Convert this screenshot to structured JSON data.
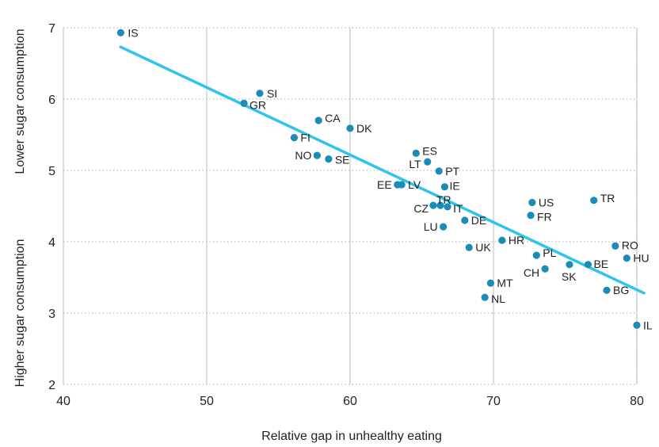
{
  "chart_data": {
    "type": "scatter",
    "xlabel": "Relative gap in unhealthy eating",
    "ylabel_top": "Lower sugar consumption",
    "ylabel_bottom": "Higher sugar consumption",
    "xlim": [
      40,
      80
    ],
    "ylim": [
      2,
      7
    ],
    "x_ticks": [
      "40",
      "50",
      "60",
      "70",
      "80"
    ],
    "y_ticks": [
      "2",
      "3",
      "4",
      "5",
      "6",
      "7"
    ],
    "grid": "dotted",
    "colors": {
      "points": "#1a8cb5",
      "trend": "#2ec4ef",
      "grid": "#bbbbbb"
    },
    "trendline": {
      "x": [
        44.0,
        80.5
      ],
      "y": [
        6.73,
        3.28
      ]
    },
    "points": [
      {
        "label": "IS",
        "x": 44.0,
        "y": 6.93
      },
      {
        "label": "SI",
        "x": 53.7,
        "y": 6.08
      },
      {
        "label": "GR",
        "x": 52.6,
        "y": 5.94
      },
      {
        "label": "CA",
        "x": 57.8,
        "y": 5.7
      },
      {
        "label": "DK",
        "x": 60.0,
        "y": 5.59
      },
      {
        "label": "FI",
        "x": 56.1,
        "y": 5.46
      },
      {
        "label": "ES",
        "x": 64.6,
        "y": 5.24
      },
      {
        "label": "NO",
        "x": 57.7,
        "y": 5.21
      },
      {
        "label": "SE",
        "x": 58.5,
        "y": 5.16
      },
      {
        "label": "LT",
        "x": 65.4,
        "y": 5.12
      },
      {
        "label": "PT",
        "x": 66.2,
        "y": 4.99
      },
      {
        "label": "EE",
        "x": 63.3,
        "y": 4.8
      },
      {
        "label": "LV",
        "x": 63.6,
        "y": 4.8
      },
      {
        "label": "IE",
        "x": 66.6,
        "y": 4.77
      },
      {
        "label": "TR",
        "x": 65.8,
        "y": 4.51
      },
      {
        "label": "CZ",
        "x": 66.3,
        "y": 4.51
      },
      {
        "label": "IT",
        "x": 66.8,
        "y": 4.49
      },
      {
        "label": "US",
        "x": 72.7,
        "y": 4.55
      },
      {
        "label": "TR",
        "x": 77.0,
        "y": 4.58
      },
      {
        "label": "FR",
        "x": 72.6,
        "y": 4.37
      },
      {
        "label": "DE",
        "x": 68.0,
        "y": 4.3
      },
      {
        "label": "LU",
        "x": 66.5,
        "y": 4.21
      },
      {
        "label": "HR",
        "x": 70.6,
        "y": 4.02
      },
      {
        "label": "UK",
        "x": 68.3,
        "y": 3.92
      },
      {
        "label": "RO",
        "x": 78.5,
        "y": 3.94
      },
      {
        "label": "PL",
        "x": 73.0,
        "y": 3.81
      },
      {
        "label": "HU",
        "x": 79.3,
        "y": 3.77
      },
      {
        "label": "BE",
        "x": 76.6,
        "y": 3.68
      },
      {
        "label": "SK",
        "x": 75.3,
        "y": 3.68
      },
      {
        "label": "CH",
        "x": 73.6,
        "y": 3.62
      },
      {
        "label": "MT",
        "x": 69.8,
        "y": 3.42
      },
      {
        "label": "BG",
        "x": 77.9,
        "y": 3.32
      },
      {
        "label": "NL",
        "x": 69.4,
        "y": 3.22
      },
      {
        "label": "IL",
        "x": 80.0,
        "y": 2.83
      }
    ]
  }
}
